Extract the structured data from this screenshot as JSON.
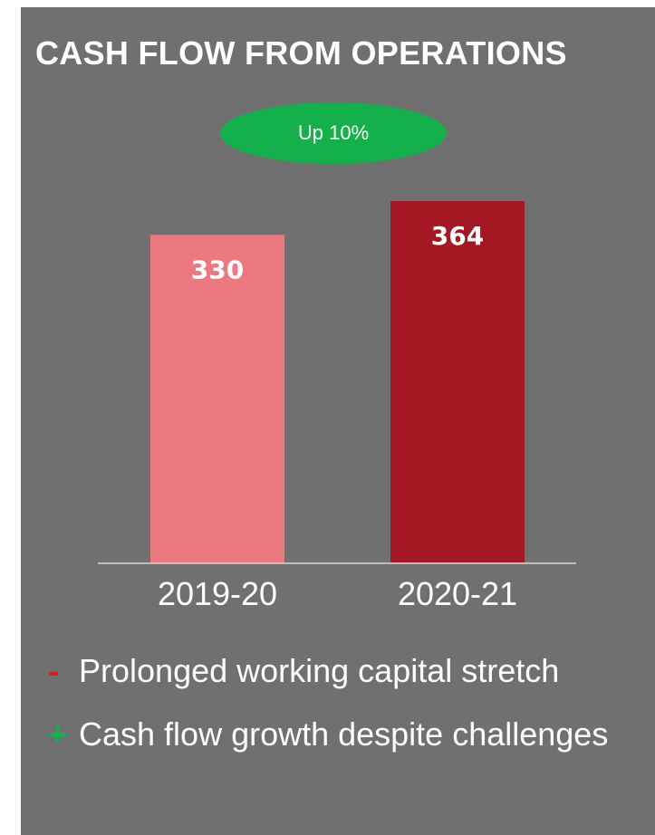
{
  "title": "CASH FLOW  FROM OPERATIONS",
  "badge": "Up 10%",
  "chart_data": {
    "type": "bar",
    "title": "CASH FLOW  FROM OPERATIONS",
    "categories": [
      "2019-20",
      "2020-21"
    ],
    "values": [
      330,
      364
    ],
    "data_labels": [
      "330",
      "364"
    ],
    "colors": [
      "#ec7880",
      "#a31822"
    ],
    "xlabel": "",
    "ylabel": "",
    "ylim": [
      0,
      364
    ],
    "grid": false,
    "legend": "none"
  },
  "bullets": [
    {
      "marker": "-",
      "marker_color": "#e8141c",
      "text": "Prolonged working capital stretch"
    },
    {
      "marker": "+",
      "marker_color": "#13b04b",
      "text": "Cash flow growth despite challenges"
    }
  ]
}
